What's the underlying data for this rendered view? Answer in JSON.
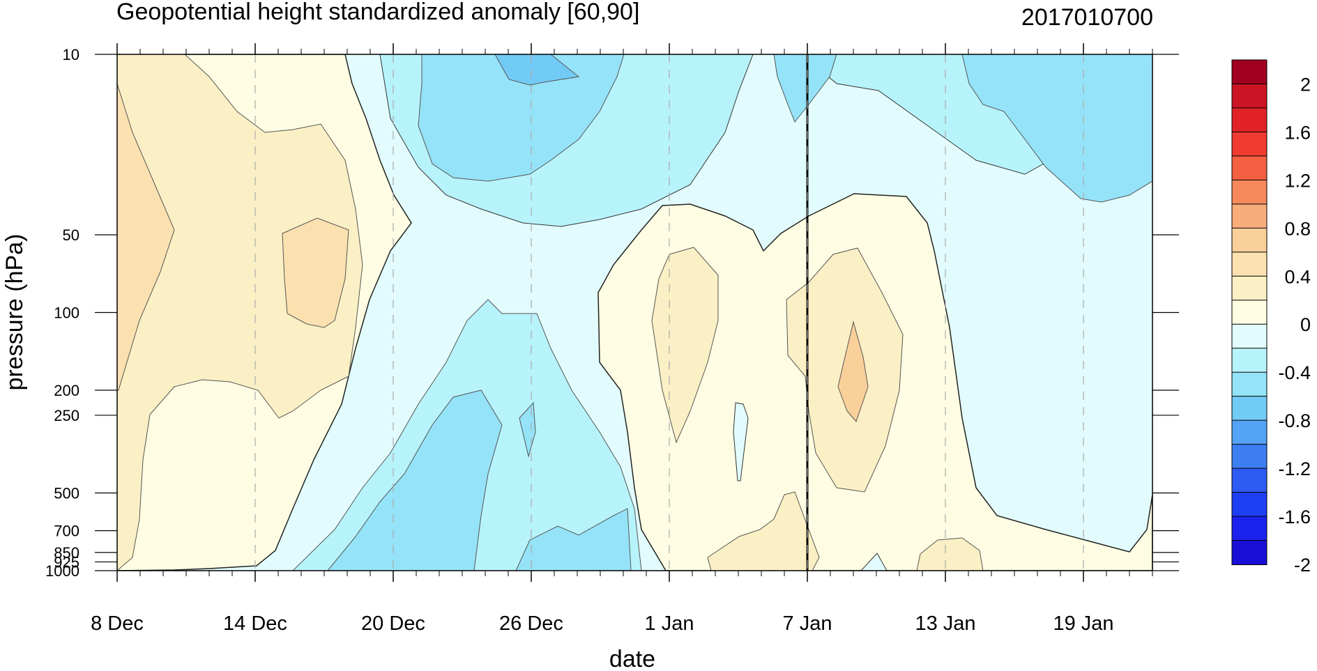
{
  "chart_data": {
    "type": "heatmap",
    "title": "Geopotential height standardized anomaly [60,90]",
    "right_title": "2017010700",
    "xlabel": "date",
    "ylabel": "pressure (hPa)",
    "y_scale": "log",
    "y_reversed": true,
    "ylim": [
      1000,
      10
    ],
    "xlim": [
      "2016-12-08",
      "2017-01-22"
    ],
    "x_ticks": [
      {
        "date": "2016-12-08",
        "label": "8 Dec"
      },
      {
        "date": "2016-12-14",
        "label": "14 Dec"
      },
      {
        "date": "2016-12-20",
        "label": "20 Dec"
      },
      {
        "date": "2016-12-26",
        "label": "26 Dec"
      },
      {
        "date": "2017-01-01",
        "label": "1 Jan"
      },
      {
        "date": "2017-01-07",
        "label": "7 Jan"
      },
      {
        "date": "2017-01-13",
        "label": "13 Jan"
      },
      {
        "date": "2017-01-19",
        "label": "19 Jan"
      }
    ],
    "y_ticks": [
      {
        "value": 10,
        "label": "10"
      },
      {
        "value": 50,
        "label": "50"
      },
      {
        "value": 100,
        "label": "100"
      },
      {
        "value": 200,
        "label": "200"
      },
      {
        "value": 250,
        "label": "250"
      },
      {
        "value": 500,
        "label": "500"
      },
      {
        "value": 700,
        "label": "700"
      },
      {
        "value": 850,
        "label": "850"
      },
      {
        "value": 925,
        "label": "925"
      },
      {
        "value": 1000,
        "label": "1000"
      }
    ],
    "reference_line_date": "2017-01-07",
    "colorbar": {
      "levels": [
        -2,
        -1.8,
        -1.6,
        -1.4,
        -1.2,
        -1.0,
        -0.8,
        -0.6,
        -0.4,
        -0.2,
        0,
        0.2,
        0.4,
        0.6,
        0.8,
        1.0,
        1.2,
        1.4,
        1.6,
        1.8,
        2
      ],
      "labels": [
        "2",
        "1.6",
        "1.2",
        "0.8",
        "0.4",
        "0",
        "-0.4",
        "-0.8",
        "-1.2",
        "-1.6",
        "-2"
      ],
      "colors": [
        "#1a0fd6",
        "#1b22ee",
        "#1f3ff5",
        "#2c5cf2",
        "#3d7ef3",
        "#55a3f5",
        "#72cbf5",
        "#95e3f8",
        "#b7f3fb",
        "#e2fcfd",
        "#fefde3",
        "#fbf0c5",
        "#fbe1b0",
        "#fad09a",
        "#f9ad7a",
        "#f78a5d",
        "#f46042",
        "#ef3b30",
        "#e02227",
        "#cb1524",
        "#a0001e"
      ]
    },
    "regions": [
      {
        "level": 0.1,
        "description": "weak positive anomaly, 8 Dec to 18 Dec full column"
      },
      {
        "level": 0.3,
        "description": "positive anomaly, 8 Dec to 19 Dec, 30-200 hPa"
      },
      {
        "level": 0.5,
        "description": "positive maxima near 8 Dec and 16 Dec at 50-120 hPa"
      },
      {
        "level": -0.3,
        "description": "negative anomaly 23 Dec to 3 Jan upper levels"
      },
      {
        "level": -0.5,
        "description": "negative anomaly 21 Dec to 30 Dec lower troposphere"
      },
      {
        "level": 0.3,
        "description": "positive anomaly 1 Jan to 11 Jan, 60-500 hPa"
      },
      {
        "level": 0.5,
        "description": "positive maximum near 9 Jan at 200 hPa"
      },
      {
        "level": -0.5,
        "description": "negative anomaly 14 Jan to 22 Jan stratosphere"
      }
    ]
  }
}
